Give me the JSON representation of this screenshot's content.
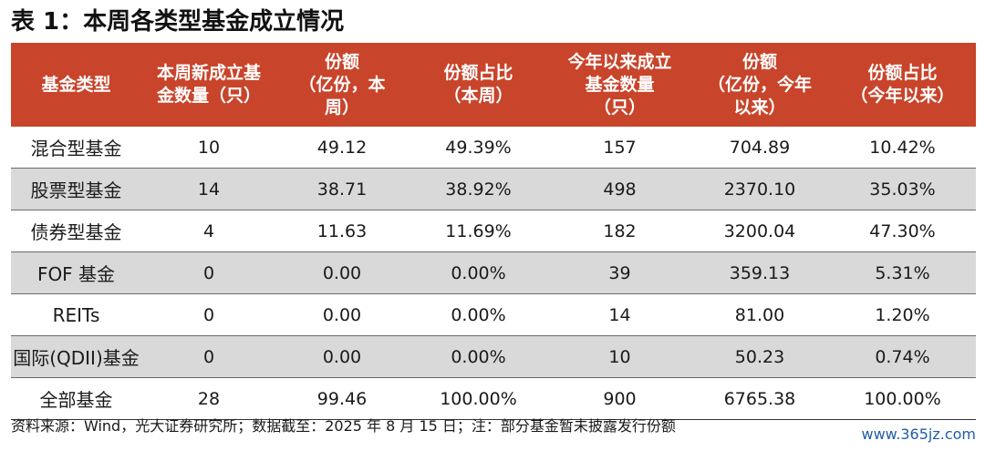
{
  "title": "表 1：本周各类型基金成立情况",
  "columns": [
    "基金类型",
    "本周新成立基\n金数量（只）",
    "份额\n（亿份，本\n周）",
    "份额占比\n（本周）",
    "今年以来成立\n基金数量\n（只）",
    "份额\n（亿份，今年\n以来）",
    "份额占比\n（今年以来）"
  ],
  "rows": [
    [
      "混合型基金",
      "10",
      "49.12",
      "49.39%",
      "157",
      "704.89",
      "10.42%"
    ],
    [
      "股票型基金",
      "14",
      "38.71",
      "38.92%",
      "498",
      "2370.10",
      "35.03%"
    ],
    [
      "债券型基金",
      "4",
      "11.63",
      "11.69%",
      "182",
      "3200.04",
      "47.30%"
    ],
    [
      "FOF 基金",
      "0",
      "0.00",
      "0.00%",
      "39",
      "359.13",
      "5.31%"
    ],
    [
      "REITs",
      "0",
      "0.00",
      "0.00%",
      "14",
      "81.00",
      "1.20%"
    ],
    [
      "国际(QDII)基金",
      "0",
      "0.00",
      "0.00%",
      "10",
      "50.23",
      "0.74%"
    ],
    [
      "全部基金",
      "28",
      "99.46",
      "100.00%",
      "900",
      "6765.38",
      "100.00%"
    ]
  ],
  "footnote": "资料来源：Wind，光大证券研究所；数据截至：2025 年 8 月 15 日；注：部分基金暂未披露发行份额",
  "watermark": "www.365jz.com",
  "colors": {
    "header_bg": "#c8442a",
    "header_text": "#ffffff",
    "stripe_bg": "#d9d9d9",
    "row_bg": "#ffffff"
  }
}
